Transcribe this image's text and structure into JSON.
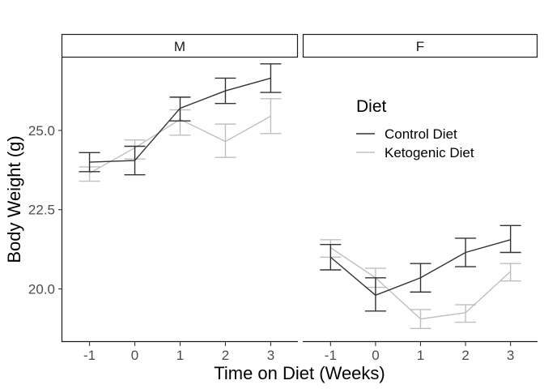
{
  "chart_data": {
    "type": "line",
    "facets": [
      "M",
      "F"
    ],
    "x": [
      -1,
      0,
      1,
      2,
      3
    ],
    "x_tick_labels": [
      "-1",
      "0",
      "1",
      "2",
      "3"
    ],
    "xlabel": "Time on Diet (Weeks)",
    "ylabel": "Body Weight (g)",
    "y_ticks": [
      20.0,
      22.5,
      25.0
    ],
    "y_tick_labels": [
      "20.0",
      "22.5",
      "25.0"
    ],
    "ylim": [
      18.35,
      27.3
    ],
    "legend": {
      "title": "Diet",
      "position": "inside-right",
      "entries": [
        "Control Diet",
        "Ketogenic Diet"
      ]
    },
    "colors": {
      "Control Diet": "#333333",
      "Ketogenic Diet": "#bfbfbf"
    },
    "series": [
      {
        "facet": "M",
        "name": "Control Diet",
        "values": [
          24.0,
          24.05,
          25.7,
          26.25,
          26.65
        ],
        "lower": [
          23.7,
          23.6,
          25.3,
          25.85,
          26.2
        ],
        "upper": [
          24.3,
          24.5,
          26.05,
          26.65,
          27.1
        ]
      },
      {
        "facet": "M",
        "name": "Ketogenic Diet",
        "values": [
          23.65,
          24.45,
          25.35,
          24.65,
          25.45
        ],
        "lower": [
          23.4,
          24.1,
          24.85,
          24.15,
          24.9
        ],
        "upper": [
          23.85,
          24.7,
          25.65,
          25.2,
          26.0
        ]
      },
      {
        "facet": "F",
        "name": "Control Diet",
        "values": [
          21.0,
          19.8,
          20.35,
          21.15,
          21.55
        ],
        "lower": [
          20.6,
          19.3,
          19.9,
          20.7,
          21.15
        ],
        "upper": [
          21.4,
          20.35,
          20.8,
          21.6,
          22.0
        ]
      },
      {
        "facet": "F",
        "name": "Ketogenic Diet",
        "values": [
          21.3,
          20.35,
          19.05,
          19.25,
          20.55
        ],
        "lower": [
          21.0,
          20.05,
          18.75,
          18.95,
          20.25
        ],
        "upper": [
          21.55,
          20.65,
          19.35,
          19.5,
          20.8
        ]
      }
    ]
  }
}
